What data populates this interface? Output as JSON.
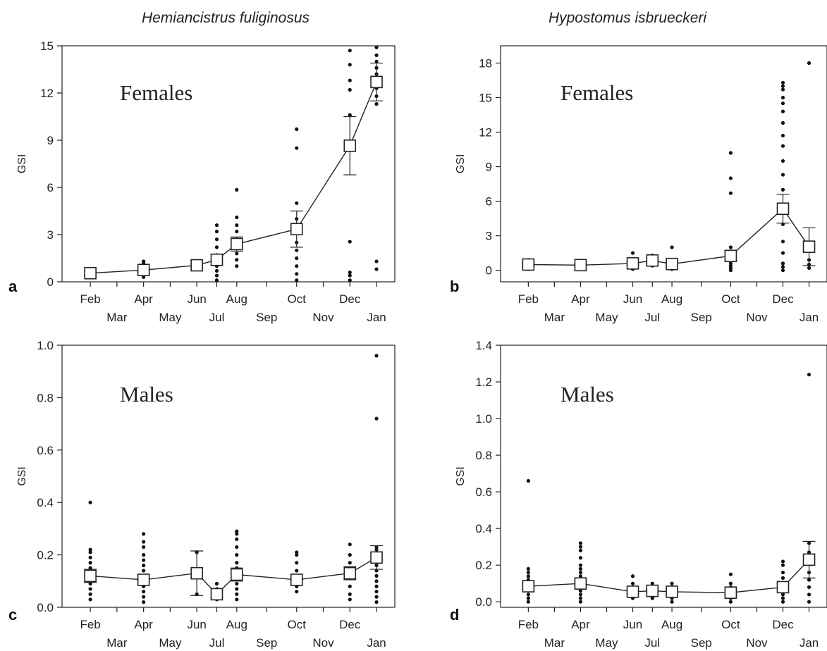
{
  "titles": {
    "left": "Hemiancistrus fuliginosus",
    "right": "Hypostomus isbrueckeri"
  },
  "colors": {
    "ink": "#222222",
    "point": "#111111",
    "marker_fill": "#ffffff"
  },
  "chart_data": [
    {
      "type": "scatter",
      "panel": "a",
      "annotation": "Females",
      "ylabel": "GSI",
      "ylim": [
        0,
        15
      ],
      "yticks": [
        0,
        3,
        6,
        9,
        12,
        15
      ],
      "months_top": [
        "Feb",
        "Apr",
        "Jun",
        "Aug",
        "Oct",
        "Dec"
      ],
      "months_bottom": [
        "Mar",
        "May",
        "Jul",
        "Sep",
        "Nov",
        "Jan"
      ],
      "mean_series": [
        {
          "month": "Feb",
          "mean": 0.55,
          "err": 0.15
        },
        {
          "month": "Apr",
          "mean": 0.75,
          "err": 0.12
        },
        {
          "month": "Jun",
          "mean": 1.05,
          "err": 0.15
        },
        {
          "month": "Jul",
          "mean": 1.4,
          "err": 0.35
        },
        {
          "month": "Aug",
          "mean": 2.4,
          "err": 0.45
        },
        {
          "month": "Oct",
          "mean": 3.35,
          "err": 1.15
        },
        {
          "month": "Dec",
          "mean": 8.65,
          "err": 1.85
        },
        {
          "month": "Jan",
          "mean": 12.7,
          "err": 1.2
        }
      ],
      "points": [
        {
          "month": "Feb",
          "values": [
            0.3,
            0.45,
            0.55,
            0.65,
            0.75
          ]
        },
        {
          "month": "Apr",
          "values": [
            0.3,
            0.5,
            0.7,
            0.85,
            1.0,
            1.15,
            1.3
          ]
        },
        {
          "month": "Jun",
          "values": [
            0.9,
            1.05,
            1.2
          ]
        },
        {
          "month": "Jul",
          "values": [
            0.1,
            0.4,
            0.7,
            1.0,
            1.3,
            1.7,
            2.2,
            2.7,
            3.2,
            3.6
          ]
        },
        {
          "month": "Aug",
          "values": [
            1.0,
            1.4,
            1.8,
            2.3,
            2.7,
            3.2,
            3.6,
            4.1,
            5.85
          ]
        },
        {
          "month": "Oct",
          "values": [
            0.1,
            0.5,
            1.0,
            1.5,
            2.0,
            2.5,
            3.2,
            4.0,
            5.0,
            8.5,
            9.7
          ]
        },
        {
          "month": "Dec",
          "values": [
            0.1,
            0.4,
            0.6,
            2.55,
            10.6,
            12.2,
            12.8,
            13.8,
            14.7
          ]
        },
        {
          "month": "Jan",
          "values": [
            0.8,
            1.3,
            11.3,
            11.8,
            12.3,
            12.8,
            13.2,
            13.6,
            14.0,
            14.4,
            14.9
          ]
        }
      ]
    },
    {
      "type": "scatter",
      "panel": "b",
      "annotation": "Females",
      "ylabel": "GSI",
      "ylim": [
        -1,
        19.5
      ],
      "yticks": [
        0,
        3,
        6,
        9,
        12,
        15,
        18
      ],
      "months_top": [
        "Feb",
        "Apr",
        "Jun",
        "Aug",
        "Oct",
        "Dec"
      ],
      "months_bottom": [
        "Mar",
        "May",
        "Jul",
        "Sep",
        "Nov",
        "Jan"
      ],
      "mean_series": [
        {
          "month": "Feb",
          "mean": 0.5,
          "err": 0.1
        },
        {
          "month": "Apr",
          "mean": 0.45,
          "err": 0.1
        },
        {
          "month": "Jun",
          "mean": 0.6,
          "err": 0.15
        },
        {
          "month": "Jul",
          "mean": 0.85,
          "err": 0.25
        },
        {
          "month": "Aug",
          "mean": 0.55,
          "err": 0.15
        },
        {
          "month": "Oct",
          "mean": 1.25,
          "err": 0.45
        },
        {
          "month": "Dec",
          "mean": 5.35,
          "err": 1.25
        },
        {
          "month": "Jan",
          "mean": 2.05,
          "err": 1.65
        }
      ],
      "points": [
        {
          "month": "Feb",
          "values": [
            0.1,
            0.3,
            0.5,
            0.7,
            0.9
          ]
        },
        {
          "month": "Apr",
          "values": [
            0.1,
            0.3,
            0.5,
            0.7
          ]
        },
        {
          "month": "Jun",
          "values": [
            0.1,
            0.3,
            0.6,
            0.9,
            1.5
          ]
        },
        {
          "month": "Jul",
          "values": [
            0.4,
            0.7,
            1.0,
            1.3
          ]
        },
        {
          "month": "Aug",
          "values": [
            0.1,
            0.3,
            0.6,
            0.9,
            2.0
          ]
        },
        {
          "month": "Oct",
          "values": [
            0.0,
            0.2,
            0.4,
            0.6,
            0.8,
            1.0,
            1.3,
            1.6,
            2.0,
            6.7,
            8.0,
            10.2
          ]
        },
        {
          "month": "Dec",
          "values": [
            0.0,
            0.3,
            0.6,
            1.5,
            2.5,
            4.0,
            5.5,
            7.0,
            8.3,
            9.5,
            10.8,
            11.7,
            12.8,
            13.8,
            14.5,
            15.0,
            15.7,
            16.0,
            16.3
          ]
        },
        {
          "month": "Jan",
          "values": [
            0.2,
            0.5,
            0.9,
            18.0
          ]
        }
      ]
    },
    {
      "type": "scatter",
      "panel": "c",
      "annotation": "Males",
      "ylabel": "GSI",
      "ylim": [
        0,
        1.0
      ],
      "yticks": [
        0.0,
        0.2,
        0.4,
        0.6,
        0.8,
        1.0
      ],
      "yticklabels": [
        "0.0",
        "0.2",
        "0.4",
        "0.6",
        "0.8",
        "1.0"
      ],
      "months_top": [
        "Feb",
        "Apr",
        "Jun",
        "Aug",
        "Oct",
        "Dec"
      ],
      "months_bottom": [
        "Mar",
        "May",
        "Jul",
        "Sep",
        "Nov",
        "Jan"
      ],
      "mean_series": [
        {
          "month": "Feb",
          "mean": 0.12,
          "err": 0.025
        },
        {
          "month": "Apr",
          "mean": 0.105,
          "err": 0.02
        },
        {
          "month": "Jun",
          "mean": 0.13,
          "err": 0.085
        },
        {
          "month": "Jul",
          "mean": 0.05,
          "err": 0.015
        },
        {
          "month": "Aug",
          "mean": 0.125,
          "err": 0.025
        },
        {
          "month": "Oct",
          "mean": 0.105,
          "err": 0.02
        },
        {
          "month": "Dec",
          "mean": 0.13,
          "err": 0.025
        },
        {
          "month": "Jan",
          "mean": 0.19,
          "err": 0.045
        }
      ],
      "points": [
        {
          "month": "Feb",
          "values": [
            0.03,
            0.05,
            0.07,
            0.09,
            0.11,
            0.13,
            0.15,
            0.17,
            0.19,
            0.21,
            0.22,
            0.4
          ]
        },
        {
          "month": "Apr",
          "values": [
            0.02,
            0.04,
            0.06,
            0.08,
            0.1,
            0.12,
            0.14,
            0.16,
            0.18,
            0.2,
            0.23,
            0.25,
            0.28
          ]
        },
        {
          "month": "Jun",
          "values": [
            0.05,
            0.21
          ]
        },
        {
          "month": "Jul",
          "values": [
            0.03,
            0.05,
            0.07,
            0.09
          ]
        },
        {
          "month": "Aug",
          "values": [
            0.03,
            0.05,
            0.07,
            0.09,
            0.11,
            0.13,
            0.15,
            0.17,
            0.2,
            0.23,
            0.26,
            0.28,
            0.29
          ]
        },
        {
          "month": "Oct",
          "values": [
            0.06,
            0.08,
            0.1,
            0.12,
            0.14,
            0.17,
            0.2,
            0.21
          ]
        },
        {
          "month": "Dec",
          "values": [
            0.03,
            0.05,
            0.08,
            0.11,
            0.14,
            0.17,
            0.2,
            0.24
          ]
        },
        {
          "month": "Jan",
          "values": [
            0.02,
            0.04,
            0.06,
            0.08,
            0.1,
            0.12,
            0.14,
            0.16,
            0.18,
            0.2,
            0.22,
            0.23,
            0.72,
            0.96
          ]
        }
      ]
    },
    {
      "type": "scatter",
      "panel": "d",
      "annotation": "Males",
      "ylabel": "GSI",
      "ylim": [
        -0.03,
        1.4
      ],
      "yticks": [
        0.0,
        0.2,
        0.4,
        0.6,
        0.8,
        1.0,
        1.2,
        1.4
      ],
      "yticklabels": [
        "0.0",
        "0.2",
        "0.4",
        "0.6",
        "0.8",
        "1.0",
        "1.2",
        "1.4"
      ],
      "months_top": [
        "Feb",
        "Apr",
        "Jun",
        "Aug",
        "Oct",
        "Dec"
      ],
      "months_bottom": [
        "Mar",
        "May",
        "Jul",
        "Sep",
        "Nov",
        "Jan"
      ],
      "mean_series": [
        {
          "month": "Feb",
          "mean": 0.085,
          "err": 0.02
        },
        {
          "month": "Apr",
          "mean": 0.1,
          "err": 0.02
        },
        {
          "month": "Jun",
          "mean": 0.055,
          "err": 0.01
        },
        {
          "month": "Jul",
          "mean": 0.06,
          "err": 0.01
        },
        {
          "month": "Aug",
          "mean": 0.055,
          "err": 0.01
        },
        {
          "month": "Oct",
          "mean": 0.05,
          "err": 0.015
        },
        {
          "month": "Dec",
          "mean": 0.08,
          "err": 0.02
        },
        {
          "month": "Jan",
          "mean": 0.23,
          "err": 0.1
        }
      ],
      "points": [
        {
          "month": "Feb",
          "values": [
            0.0,
            0.02,
            0.04,
            0.06,
            0.08,
            0.1,
            0.12,
            0.14,
            0.16,
            0.18,
            0.66
          ]
        },
        {
          "month": "Apr",
          "values": [
            0.0,
            0.02,
            0.04,
            0.06,
            0.08,
            0.1,
            0.12,
            0.14,
            0.16,
            0.18,
            0.2,
            0.24,
            0.28,
            0.3,
            0.32
          ]
        },
        {
          "month": "Jun",
          "values": [
            0.02,
            0.04,
            0.06,
            0.08,
            0.1,
            0.14
          ]
        },
        {
          "month": "Jul",
          "values": [
            0.02,
            0.04,
            0.06,
            0.08,
            0.1
          ]
        },
        {
          "month": "Aug",
          "values": [
            0.0,
            0.02,
            0.04,
            0.06,
            0.08,
            0.1
          ]
        },
        {
          "month": "Oct",
          "values": [
            0.0,
            0.02,
            0.04,
            0.06,
            0.08,
            0.1,
            0.15
          ]
        },
        {
          "month": "Dec",
          "values": [
            0.0,
            0.02,
            0.04,
            0.06,
            0.08,
            0.1,
            0.13,
            0.16,
            0.2,
            0.22
          ]
        },
        {
          "month": "Jan",
          "values": [
            0.0,
            0.04,
            0.08,
            0.12,
            0.16,
            0.22,
            0.27,
            0.32,
            1.24
          ]
        }
      ]
    }
  ]
}
